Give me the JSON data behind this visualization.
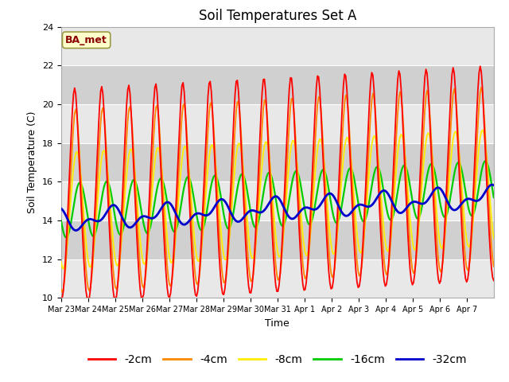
{
  "title": "Soil Temperatures Set A",
  "xlabel": "Time",
  "ylabel": "Soil Temperature (C)",
  "ylim": [
    10,
    24
  ],
  "yticks": [
    10,
    12,
    14,
    16,
    18,
    20,
    22,
    24
  ],
  "annotation": "BA_met",
  "colors": {
    "-2cm": "#ff0000",
    "-4cm": "#ff8800",
    "-8cm": "#ffee00",
    "-16cm": "#00cc00",
    "-32cm": "#0000cc"
  },
  "legend_labels": [
    "-2cm",
    "-4cm",
    "-8cm",
    "-16cm",
    "-32cm"
  ],
  "x_tick_labels": [
    "Mar 23",
    "Mar 24",
    "Mar 25",
    "Mar 26",
    "Mar 27",
    "Mar 28",
    "Mar 29",
    "Mar 30",
    "Mar 31",
    "Apr 1",
    "Apr 2",
    "Apr 3",
    "Apr 4",
    "Apr 5",
    "Apr 6",
    "Apr 7"
  ],
  "band_colors": [
    "#e8e8e8",
    "#d0d0d0"
  ],
  "fig_bg": "#ffffff",
  "legend_fontsize": 10,
  "title_fontsize": 12,
  "axis_fontsize": 9
}
